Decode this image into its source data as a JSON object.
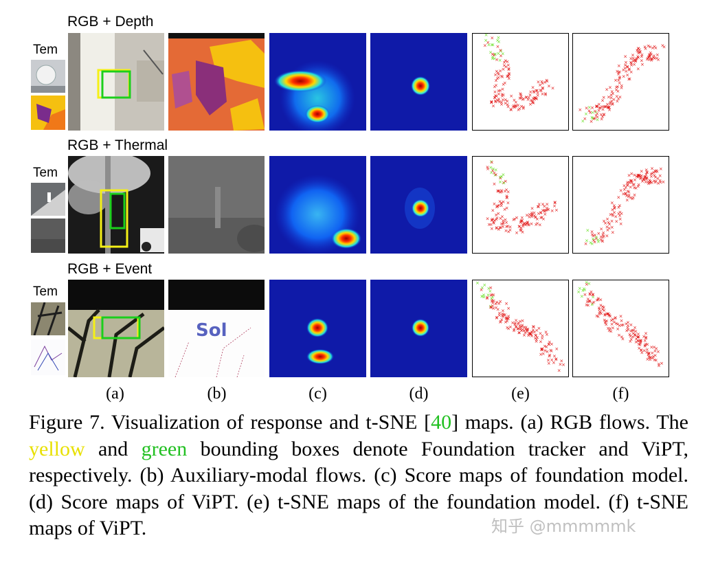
{
  "rows": [
    {
      "label": "RGB + Depth",
      "tem": "Tem"
    },
    {
      "label": "RGB + Thermal",
      "tem": "Tem"
    },
    {
      "label": "RGB + Event",
      "tem": "Tem"
    }
  ],
  "column_labels": [
    "(a)",
    "(b)",
    "(c)",
    "(d)",
    "(e)",
    "(f)"
  ],
  "caption": {
    "prefix": "Figure 7.  Visualization of response and t-SNE [",
    "ref": "40",
    "after_ref": "] maps.  (a) RGB flows. The ",
    "yellow_word": "yellow",
    "and": " and ",
    "green_word": "green",
    "rest": " bounding boxes denote Foundation tracker and ViPT, respectively. (b) Auxiliary-modal flows. (c) Score maps of foundation model. (d) Score maps of ViPT. (e) t-SNE maps of the foundation model. (f) t-SNE maps of ViPT."
  },
  "watermark": "知乎 @mmmmmk",
  "colors": {
    "yellow_box": "#f5f016",
    "green_box": "#1ccf1c",
    "ref_link": "#22c022",
    "tsne_red": "#e01010",
    "tsne_green": "#66e020",
    "heat_bg": "#0f1aa8"
  }
}
